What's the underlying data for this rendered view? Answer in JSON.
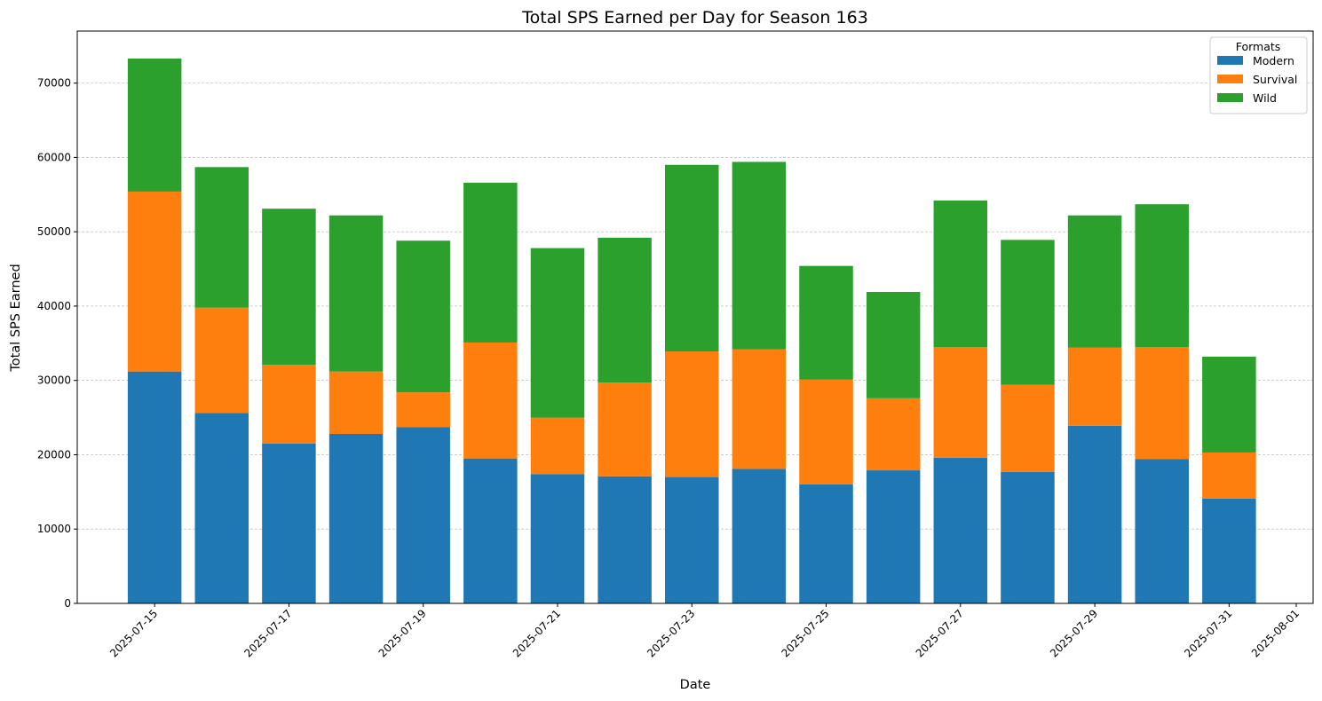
{
  "chart_data": {
    "type": "bar",
    "stacked": true,
    "title": "Total SPS Earned per Day for Season 163",
    "xlabel": "Date",
    "ylabel": "Total SPS Earned",
    "x": [
      "2025-07-15",
      "2025-07-16",
      "2025-07-17",
      "2025-07-18",
      "2025-07-19",
      "2025-07-20",
      "2025-07-21",
      "2025-07-22",
      "2025-07-23",
      "2025-07-24",
      "2025-07-25",
      "2025-07-26",
      "2025-07-27",
      "2025-07-28",
      "2025-07-29",
      "2025-07-30",
      "2025-07-31"
    ],
    "xticks": [
      "2025-07-15",
      "2025-07-17",
      "2025-07-19",
      "2025-07-21",
      "2025-07-23",
      "2025-07-25",
      "2025-07-27",
      "2025-07-29",
      "2025-07-31",
      "2025-08-01"
    ],
    "xlim": [
      "2025-07-14",
      "2025-08-01"
    ],
    "yticks": [
      0,
      10000,
      20000,
      30000,
      40000,
      50000,
      60000,
      70000
    ],
    "ylim": [
      0,
      77000
    ],
    "grid": "y-dashed",
    "legend": {
      "title": "Formats",
      "position": "top-right"
    },
    "series": [
      {
        "name": "Modern",
        "color": "#1f77b4",
        "values": [
          31200,
          25600,
          21500,
          22800,
          23700,
          19500,
          17400,
          17100,
          17000,
          18100,
          16000,
          17900,
          19600,
          17700,
          23900,
          19400,
          14100
        ]
      },
      {
        "name": "Survival",
        "color": "#ff7f0e",
        "values": [
          24200,
          14200,
          10600,
          8400,
          4700,
          15600,
          7600,
          12600,
          16900,
          16100,
          14100,
          9700,
          14900,
          11700,
          10500,
          15100,
          6200
        ]
      },
      {
        "name": "Wild",
        "color": "#2ca02c",
        "values": [
          17900,
          18900,
          21000,
          21000,
          20400,
          21500,
          22800,
          19500,
          25100,
          25200,
          15300,
          14300,
          19700,
          19500,
          17800,
          19200,
          12900
        ]
      }
    ]
  }
}
